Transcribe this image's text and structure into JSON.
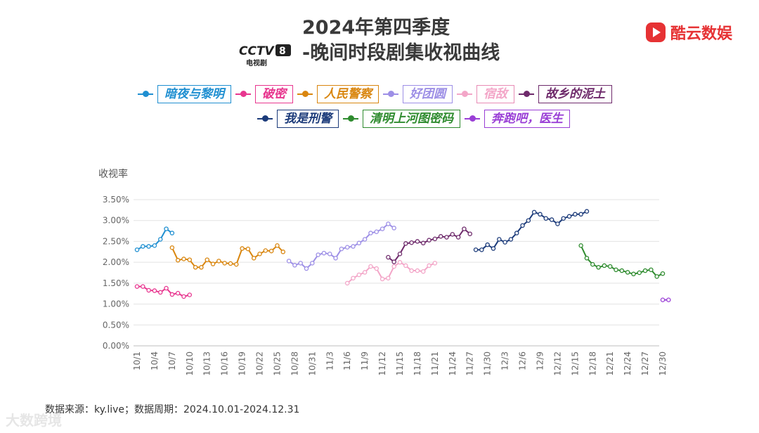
{
  "header": {
    "title_line1": "2024年第四季度",
    "title_line2": "-晚间时段剧集收视曲线",
    "channel_logo_text": "CCTV",
    "channel_number": "8",
    "channel_sub": "电视剧",
    "brand_name": "酷云数娱",
    "brand_color": "#e63234"
  },
  "source_text": "数据来源：ky.live；数据周期：2024.10.01-2024.12.31",
  "watermark_text": "大数跨境",
  "chart_data": {
    "type": "line",
    "ylabel": "收视率",
    "ylim": [
      0,
      3.5
    ],
    "yticks": [
      "0.00%",
      "0.50%",
      "1.00%",
      "1.50%",
      "2.00%",
      "2.50%",
      "3.00%",
      "3.50%"
    ],
    "x_start": "10/1",
    "x_end": "12/30",
    "xticks": [
      "10/1",
      "10/4",
      "10/7",
      "10/10",
      "10/13",
      "10/16",
      "10/19",
      "10/22",
      "10/25",
      "10/28",
      "10/31",
      "11/3",
      "11/6",
      "11/9",
      "11/12",
      "11/15",
      "11/18",
      "11/21",
      "11/24",
      "11/27",
      "11/30",
      "12/3",
      "12/6",
      "12/9",
      "12/12",
      "12/15",
      "12/18",
      "12/21",
      "12/24",
      "12/27",
      "12/30"
    ],
    "grid": "horizontal",
    "legend_position": "top",
    "series": [
      {
        "name": "暗夜与黎明",
        "color": "#1f8fd1",
        "box_border": "#1f8fd1",
        "start": "10/1",
        "values": [
          2.3,
          2.38,
          2.38,
          2.4,
          2.55,
          2.8,
          2.7
        ]
      },
      {
        "name": "破密",
        "color": "#e8368f",
        "box_border": "#e8368f",
        "start": "10/1",
        "values": [
          1.42,
          1.42,
          1.33,
          1.32,
          1.28,
          1.38,
          1.23,
          1.26,
          1.18,
          1.22
        ]
      },
      {
        "name": "人民警察",
        "color": "#d9860f",
        "box_border": "#d9860f",
        "start": "10/7",
        "values": [
          2.35,
          2.05,
          2.08,
          2.06,
          1.88,
          1.88,
          2.06,
          1.96,
          2.03,
          1.98,
          1.97,
          1.95,
          2.33,
          2.32,
          2.1,
          2.2,
          2.28,
          2.27,
          2.4,
          2.25
        ]
      },
      {
        "name": "好团圆",
        "color": "#9d8fe6",
        "box_border": "#9d8fe6",
        "start": "10/27",
        "values": [
          2.03,
          1.93,
          1.98,
          1.85,
          1.98,
          2.18,
          2.22,
          2.2,
          2.1,
          2.32,
          2.36,
          2.38,
          2.46,
          2.55,
          2.7,
          2.73,
          2.8,
          2.92,
          2.82
        ]
      },
      {
        "name": "宿敌",
        "color": "#f3a6c8",
        "box_border": "#e88cb6",
        "start": "11/6",
        "values": [
          1.5,
          1.62,
          1.7,
          1.76,
          1.9,
          1.85,
          1.6,
          1.62,
          1.9,
          2.0,
          1.92,
          1.8,
          1.8,
          1.78,
          1.92,
          1.98
        ]
      },
      {
        "name": "故乡的泥土",
        "color": "#6e2a6b",
        "box_border": "#6e2a6b",
        "start": "11/13",
        "values": [
          2.12,
          2.01,
          2.2,
          2.45,
          2.47,
          2.5,
          2.46,
          2.53,
          2.56,
          2.62,
          2.6,
          2.67,
          2.6,
          2.8,
          2.68
        ]
      },
      {
        "name": "我是刑警",
        "color": "#1c3b7a",
        "box_border": "#1c3b7a",
        "start": "11/28",
        "values": [
          2.3,
          2.3,
          2.42,
          2.33,
          2.55,
          2.48,
          2.55,
          2.7,
          2.88,
          3.0,
          3.2,
          3.15,
          3.05,
          3.02,
          2.92,
          3.05,
          3.1,
          3.15,
          3.15,
          3.22
        ]
      },
      {
        "name": "清明上河图密码",
        "color": "#2e8b2e",
        "box_border": "#2e8b2e",
        "start": "12/16",
        "values": [
          2.4,
          2.1,
          1.95,
          1.88,
          1.92,
          1.9,
          1.82,
          1.8,
          1.76,
          1.72,
          1.75,
          1.8,
          1.82,
          1.66,
          1.73
        ]
      },
      {
        "name": "奔跑吧，医生",
        "color": "#9a3fd6",
        "box_border": "#9a3fd6",
        "start": "12/30",
        "values": [
          1.1,
          1.1
        ]
      }
    ]
  }
}
